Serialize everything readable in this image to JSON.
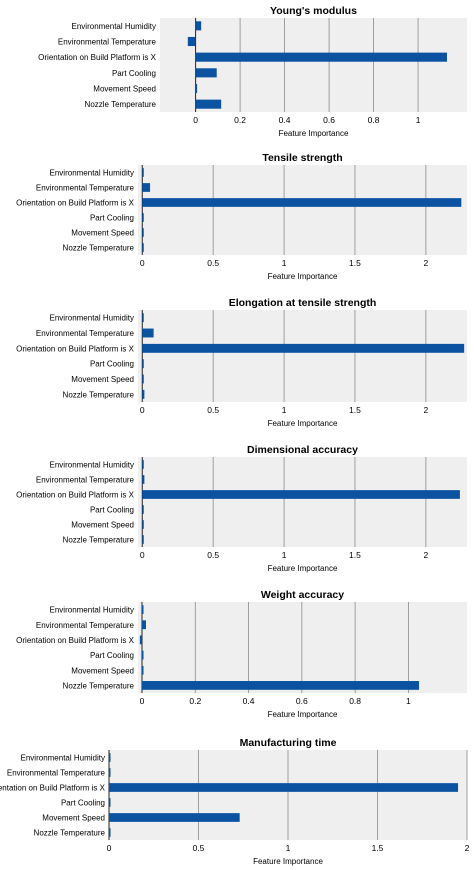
{
  "colors": {
    "bar": "#0b52a0",
    "panel": "#efefef",
    "grid": "#8a8a8a",
    "zero": "#222222"
  },
  "chart_data": [
    {
      "type": "bar",
      "orientation": "horizontal",
      "title": "Young's modulus",
      "xlabel": "Feature Importance",
      "categories": [
        "Environmental Humidity",
        "Environmental Temperature",
        "Orientation on Build Platform is X",
        "Part Cooling",
        "Movement Speed",
        "Nozzle Temperature"
      ],
      "values": [
        0.025,
        -0.035,
        1.13,
        0.095,
        0.002,
        0.115
      ],
      "xlim": [
        -0.16,
        1.22
      ],
      "xticks": [
        0,
        0.2,
        0.4,
        0.6,
        0.8,
        1
      ],
      "xtick_labels": [
        "0",
        "0.2",
        "0.4",
        "0.6",
        "0.8",
        "1"
      ],
      "grid": true
    },
    {
      "type": "bar",
      "orientation": "horizontal",
      "title": "Tensile strength",
      "xlabel": "Feature Importance",
      "categories": [
        "Environmental Humidity",
        "Environmental Temperature",
        "Orientation on Build Platform is X",
        "Part Cooling",
        "Movement Speed",
        "Nozzle Temperature"
      ],
      "values": [
        0.005,
        0.055,
        2.25,
        0.005,
        0.003,
        0.01
      ],
      "xlim": [
        -0.03,
        2.29
      ],
      "xticks": [
        0,
        0.5,
        1,
        1.5,
        2
      ],
      "xtick_labels": [
        "0",
        "0.5",
        "1",
        "1.5",
        "2"
      ],
      "grid": true
    },
    {
      "type": "bar",
      "orientation": "horizontal",
      "title": "Elongation at tensile strength",
      "xlabel": "Feature Importance",
      "categories": [
        "Environmental Humidity",
        "Environmental Temperature",
        "Orientation on Build Platform is X",
        "Part Cooling",
        "Movement Speed",
        "Nozzle Temperature"
      ],
      "values": [
        0.005,
        0.08,
        2.27,
        0.003,
        0.003,
        0.015
      ],
      "xlim": [
        -0.03,
        2.29
      ],
      "xticks": [
        0,
        0.5,
        1,
        1.5,
        2
      ],
      "xtick_labels": [
        "0",
        "0.5",
        "1",
        "1.5",
        "2"
      ],
      "grid": true
    },
    {
      "type": "bar",
      "orientation": "horizontal",
      "title": "Dimensional accuracy",
      "xlabel": "Feature Importance",
      "categories": [
        "Environmental Humidity",
        "Environmental Temperature",
        "Orientation on Build Platform is X",
        "Part Cooling",
        "Movement Speed",
        "Nozzle Temperature"
      ],
      "values": [
        0.005,
        0.015,
        2.24,
        0.003,
        0.005,
        0.01
      ],
      "xlim": [
        -0.03,
        2.29
      ],
      "xticks": [
        0,
        0.5,
        1,
        1.5,
        2
      ],
      "xtick_labels": [
        "0",
        "0.5",
        "1",
        "1.5",
        "2"
      ],
      "grid": true
    },
    {
      "type": "bar",
      "orientation": "horizontal",
      "title": "Weight accuracy",
      "xlabel": "Feature Importance",
      "categories": [
        "Environmental Humidity",
        "Environmental Temperature",
        "Orientation on Build Platform is X",
        "Part Cooling",
        "Movement Speed",
        "Nozzle Temperature"
      ],
      "values": [
        0.003,
        0.015,
        -0.008,
        0.003,
        0.003,
        1.04
      ],
      "xlim": [
        -0.015,
        1.22
      ],
      "xticks": [
        0,
        0.2,
        0.4,
        0.6,
        0.8,
        1
      ],
      "xtick_labels": [
        "0",
        "0.2",
        "0.4",
        "0.6",
        "0.8",
        "1"
      ],
      "grid": true
    },
    {
      "type": "bar",
      "orientation": "horizontal",
      "title": "Manufacturing time",
      "xlabel": "Feature Importance",
      "categories": [
        "Environmental Humidity",
        "Environmental Temperature",
        "Orientation on Build Platform is X",
        "Part Cooling",
        "Movement Speed",
        "Nozzle Temperature"
      ],
      "values": [
        0.005,
        0.005,
        1.95,
        0.005,
        0.73,
        0.005
      ],
      "xlim": [
        0,
        2
      ],
      "xticks": [
        0,
        0.5,
        1,
        1.5,
        2
      ],
      "xtick_labels": [
        "0",
        "0.5",
        "1",
        "1.5",
        "2"
      ],
      "grid": true
    }
  ]
}
